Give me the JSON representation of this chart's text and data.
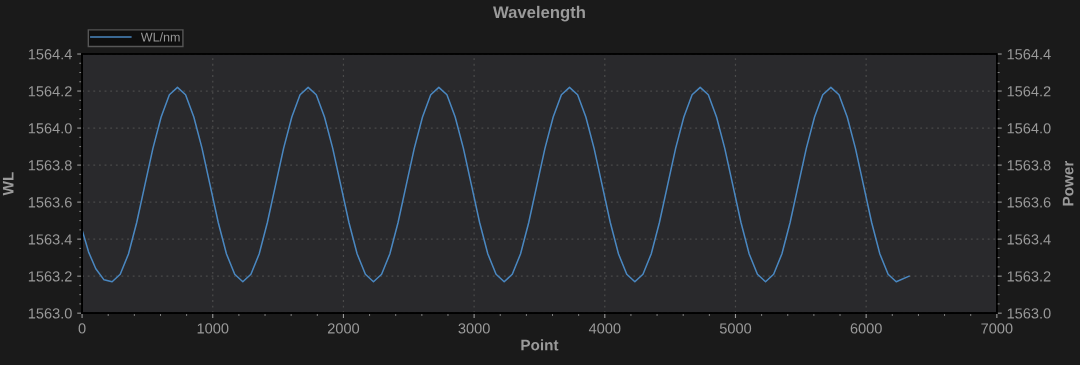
{
  "chart_data": {
    "type": "line",
    "title": "Wavelength",
    "xlabel": "Point",
    "ylabel": "WL",
    "y2label": "Power",
    "xlim": [
      0,
      7000
    ],
    "xticks": [
      0,
      1000,
      2000,
      3000,
      4000,
      5000,
      6000,
      7000
    ],
    "ylim": [
      1563.0,
      1564.4
    ],
    "yticks": [
      {
        "value": 1563.0,
        "label": "1563.0"
      },
      {
        "value": 1563.2,
        "label": "1563.2"
      },
      {
        "value": 1563.4,
        "label": "1563.4"
      },
      {
        "value": 1563.6,
        "label": "1563.6"
      },
      {
        "value": 1563.8,
        "label": "1563.8"
      },
      {
        "value": 1564.0,
        "label": "1564.0"
      },
      {
        "value": 1564.2,
        "label": "1564.2"
      },
      {
        "value": 1564.4,
        "label": "1564.4"
      }
    ],
    "y2lim": [
      1563.0,
      1564.4
    ],
    "y2ticks": [
      {
        "value": 1563.0,
        "label": "1563.0"
      },
      {
        "value": 1563.2,
        "label": "1563.2"
      },
      {
        "value": 1563.4,
        "label": "1563.4"
      },
      {
        "value": 1563.6,
        "label": "1563.6"
      },
      {
        "value": 1563.8,
        "label": "1563.8"
      },
      {
        "value": 1564.0,
        "label": "1564.0"
      },
      {
        "value": 1564.2,
        "label": "1564.2"
      },
      {
        "value": 1564.4,
        "label": "1564.4"
      }
    ],
    "grid": true,
    "legend": "top left",
    "marker": "none",
    "line_style": "solid",
    "series": [
      {
        "name": "WL/nm",
        "color": "#4a87c0",
        "x": [
          0,
          50,
          105,
          168,
          230,
          292,
          355,
          418,
          480,
          542,
          605,
          668,
          730,
          792,
          855,
          918,
          980,
          1042,
          1105,
          1168,
          1230,
          1292,
          1355,
          1418,
          1480,
          1542,
          1605,
          1668,
          1730,
          1792,
          1855,
          1918,
          1980,
          2042,
          2105,
          2168,
          2230,
          2292,
          2355,
          2418,
          2480,
          2542,
          2605,
          2668,
          2730,
          2792,
          2855,
          2918,
          2980,
          3042,
          3105,
          3168,
          3230,
          3292,
          3355,
          3418,
          3480,
          3542,
          3605,
          3668,
          3730,
          3792,
          3855,
          3918,
          3980,
          4042,
          4105,
          4168,
          4230,
          4292,
          4355,
          4418,
          4480,
          4542,
          4605,
          4668,
          4730,
          4792,
          4855,
          4918,
          4980,
          5042,
          5105,
          5168,
          5230,
          5292,
          5355,
          5418,
          5480,
          5542,
          5605,
          5668,
          5730,
          5792,
          5855,
          5918,
          5980,
          6042,
          6105,
          6168,
          6230,
          6328
        ],
        "values": [
          1563.45,
          1563.33,
          1563.24,
          1563.18,
          1563.17,
          1563.21,
          1563.32,
          1563.49,
          1563.69,
          1563.89,
          1564.06,
          1564.18,
          1564.22,
          1564.18,
          1564.06,
          1563.89,
          1563.69,
          1563.49,
          1563.32,
          1563.21,
          1563.17,
          1563.21,
          1563.32,
          1563.49,
          1563.69,
          1563.89,
          1564.06,
          1564.18,
          1564.22,
          1564.18,
          1564.06,
          1563.89,
          1563.69,
          1563.49,
          1563.32,
          1563.21,
          1563.17,
          1563.21,
          1563.32,
          1563.49,
          1563.69,
          1563.89,
          1564.06,
          1564.18,
          1564.22,
          1564.18,
          1564.06,
          1563.89,
          1563.69,
          1563.49,
          1563.32,
          1563.21,
          1563.17,
          1563.21,
          1563.32,
          1563.49,
          1563.69,
          1563.89,
          1564.06,
          1564.18,
          1564.22,
          1564.18,
          1564.06,
          1563.89,
          1563.69,
          1563.49,
          1563.32,
          1563.21,
          1563.17,
          1563.21,
          1563.32,
          1563.49,
          1563.69,
          1563.89,
          1564.06,
          1564.18,
          1564.22,
          1564.18,
          1564.06,
          1563.89,
          1563.69,
          1563.49,
          1563.32,
          1563.21,
          1563.17,
          1563.21,
          1563.32,
          1563.49,
          1563.69,
          1563.89,
          1564.06,
          1564.18,
          1564.22,
          1564.18,
          1564.06,
          1563.89,
          1563.69,
          1563.49,
          1563.32,
          1563.21,
          1563.17,
          1563.2
        ]
      }
    ]
  }
}
